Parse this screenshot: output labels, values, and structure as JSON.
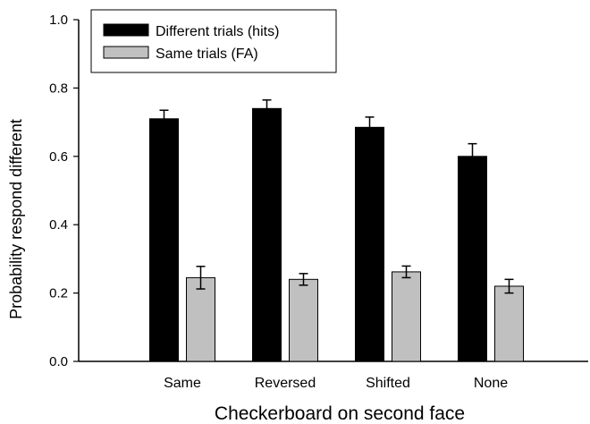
{
  "chart_data": {
    "type": "bar",
    "title": "",
    "xlabel": "Checkerboard on second face",
    "ylabel": "Probability respond different",
    "categories": [
      "Same",
      "Reversed",
      "Shifted",
      "None"
    ],
    "ylim": [
      0.0,
      1.0
    ],
    "yticks": [
      "0.0",
      "0.2",
      "0.4",
      "0.6",
      "0.8",
      "1.0"
    ],
    "grid": false,
    "legend_position": "top-left",
    "series": [
      {
        "name": "Different trials (hits)",
        "color": "#000000",
        "values": [
          0.71,
          0.74,
          0.685,
          0.6
        ],
        "errors": [
          0.025,
          0.025,
          0.03,
          0.037
        ]
      },
      {
        "name": "Same trials (FA)",
        "color": "#c0c0c0",
        "values": [
          0.245,
          0.24,
          0.262,
          0.22
        ],
        "errors": [
          0.033,
          0.017,
          0.017,
          0.02
        ]
      }
    ]
  }
}
